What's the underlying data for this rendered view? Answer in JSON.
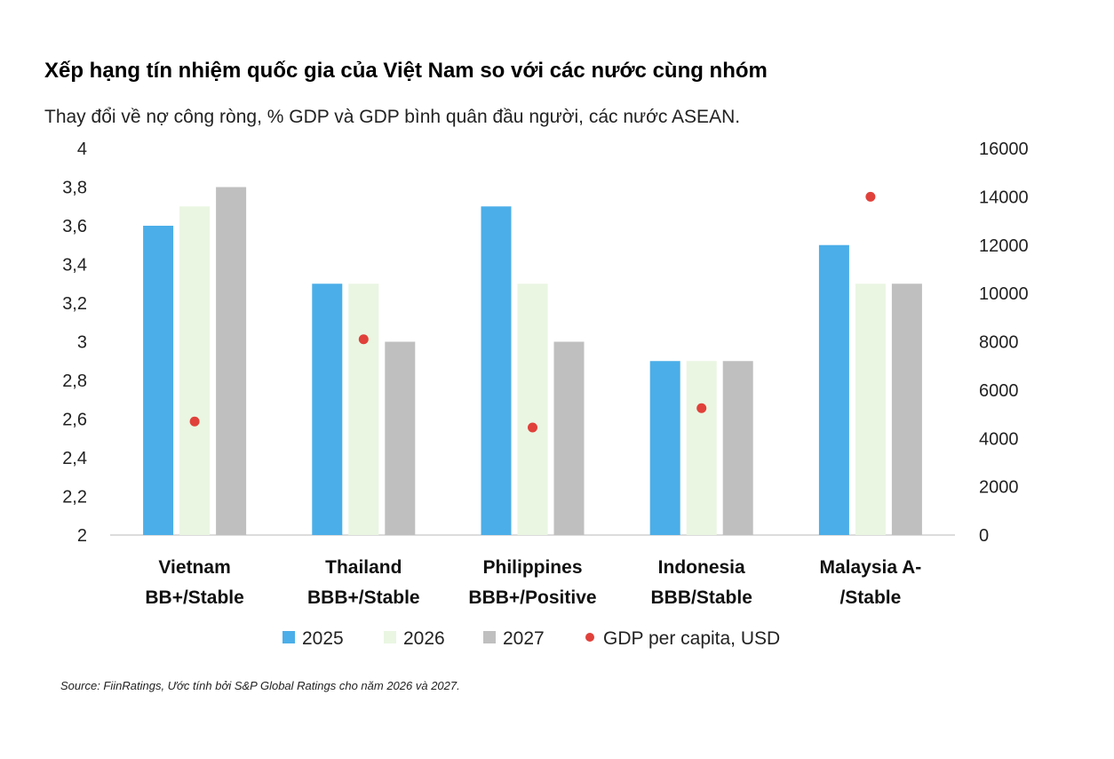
{
  "title": "Xếp hạng tín nhiệm quốc gia của Việt Nam so với các nước cùng nhóm",
  "subtitle": "Thay đổi về nợ công ròng, % GDP và GDP bình quân đầu người, các nước ASEAN.",
  "source": "Source: FiinRatings, Ước tính bởi S&P Global Ratings cho năm 2026 và 2027.",
  "colors": {
    "s2025": "#4baee8",
    "s2026": "#eaf6e2",
    "s2027": "#bfbfbf",
    "gdp": "#e0413a",
    "axis": "#d0d0d0"
  },
  "chart_data": {
    "type": "bar",
    "categories": [
      [
        "Vietnam",
        "BB+/Stable"
      ],
      [
        "Thailand",
        "BBB+/Stable"
      ],
      [
        "Philippines",
        "BBB+/Positive"
      ],
      [
        "Indonesia",
        "BBB/Stable"
      ],
      [
        "Malaysia A-",
        "/Stable"
      ]
    ],
    "series": [
      {
        "name": "2025",
        "values": [
          3.6,
          3.3,
          3.7,
          2.9,
          3.5
        ],
        "axis": "left"
      },
      {
        "name": "2026",
        "values": [
          3.7,
          3.3,
          3.3,
          2.9,
          3.3
        ],
        "axis": "left"
      },
      {
        "name": "2027",
        "values": [
          3.8,
          3.0,
          3.0,
          2.9,
          3.3
        ],
        "axis": "left"
      }
    ],
    "gdp_series": {
      "name": "GDP per capita, USD",
      "type": "scatter",
      "axis": "right",
      "values": [
        4700,
        8100,
        4450,
        5250,
        14000
      ]
    },
    "left_axis": {
      "ylim": [
        2,
        4
      ],
      "ticks": [
        "2",
        "2,2",
        "2,4",
        "2,6",
        "2,8",
        "3",
        "3,2",
        "3,4",
        "3,6",
        "3,8",
        "4"
      ]
    },
    "right_axis": {
      "ylim": [
        0,
        16000
      ],
      "ticks": [
        "0",
        "2000",
        "4000",
        "6000",
        "8000",
        "10000",
        "12000",
        "14000",
        "16000"
      ]
    },
    "grid": false,
    "legend": "bottom"
  }
}
